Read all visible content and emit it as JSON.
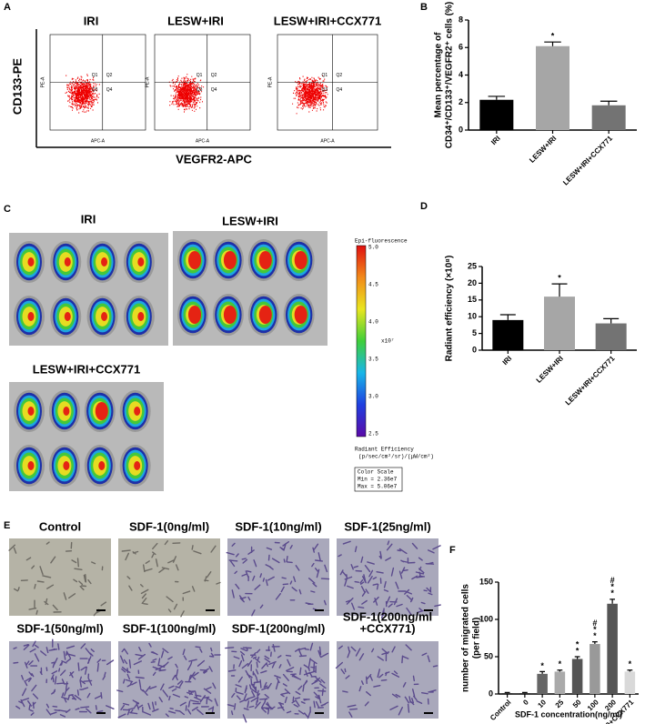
{
  "panel_a": {
    "letter": "A",
    "titles": [
      "IRI",
      "LESW+IRI",
      "LESW+IRI+CCX771"
    ],
    "y_label": "CD133-PE",
    "x_label": "VEGFR2-APC",
    "plot_x_axis": "APC-A",
    "plot_y_axis": "PE-A",
    "quadrants": [
      "Q1",
      "Q2",
      "Q3",
      "Q4"
    ]
  },
  "panel_c": {
    "letter": "C",
    "titles": [
      "IRI",
      "LESW+IRI",
      "LESW+IRI+CCX771"
    ],
    "colorbar": {
      "title": "Epi-fluorescence",
      "ticks": [
        "5.0",
        "4.5",
        "4.0",
        "3.5",
        "3.0",
        "2.5"
      ],
      "scale": "x10⁷",
      "units": [
        "Radiant Efficiency",
        "(p/sec/cm²/sr)/(μW/cm²)"
      ],
      "legend": [
        "Color Scale",
        "Min = 2.36e7",
        "Max = 5.06e7"
      ]
    }
  },
  "panel_e": {
    "letter": "E",
    "titles": [
      [
        "Control"
      ],
      [
        "SDF-1(0ng/ml)"
      ],
      [
        "SDF-1(10ng/ml)"
      ],
      [
        "SDF-1(25ng/ml)"
      ],
      [
        "SDF-1(50ng/ml)"
      ],
      [
        "SDF-1(100ng/ml)"
      ],
      [
        "SDF-1(200ng/ml)"
      ],
      [
        "SDF-1(200ng/ml",
        "+CCX771)"
      ]
    ]
  },
  "chart_data": [
    {
      "type": "bar",
      "panel": "B",
      "ylabel": [
        "Mean percentage of",
        "CD34⁺/CD133⁺/VEGFR2⁺ cells (%)"
      ],
      "categories": [
        "IRI",
        "LESW+IRI",
        "LESW+IRI+CCX771"
      ],
      "values": [
        2.2,
        6.1,
        1.8
      ],
      "errors": [
        0.25,
        0.3,
        0.3
      ],
      "colors": [
        "#000000",
        "#a6a6a6",
        "#737373"
      ],
      "ylim": [
        0,
        8
      ],
      "yticks": [
        0,
        2,
        4,
        6,
        8
      ],
      "annotations": [
        {
          "index": 1,
          "text": "*"
        }
      ]
    },
    {
      "type": "bar",
      "panel": "D",
      "ylabel": [
        "Radiant efficiency (×10⁸)"
      ],
      "categories": [
        "IRI",
        "LESW+IRI",
        "LESW+IRI+CCX771"
      ],
      "values": [
        9,
        16,
        8
      ],
      "errors": [
        1.6,
        3.8,
        1.4
      ],
      "colors": [
        "#000000",
        "#a6a6a6",
        "#737373"
      ],
      "ylim": [
        0,
        25
      ],
      "yticks": [
        0,
        5,
        10,
        15,
        20,
        25
      ],
      "annotations": [
        {
          "index": 1,
          "text": "*"
        }
      ]
    },
    {
      "type": "bar",
      "panel": "F",
      "ylabel": [
        "number of migrated cells",
        "(per field)"
      ],
      "xlabel": "SDF-1 concentration(ng/ml)",
      "categories": [
        "Control",
        "0",
        "10",
        "25",
        "50",
        "100",
        "200",
        "200+CCX771"
      ],
      "values": [
        1,
        1,
        27,
        30,
        47,
        67,
        121,
        30
      ],
      "errors": [
        1,
        1,
        3,
        2,
        3,
        3,
        6,
        2
      ],
      "colors": [
        "#222222",
        "#222222",
        "#666666",
        "#aaaaaa",
        "#555555",
        "#999999",
        "#555555",
        "#d9d9d9"
      ],
      "ylim": [
        0,
        150
      ],
      "yticks": [
        0,
        50,
        100,
        150
      ],
      "annotations": [
        {
          "index": 2,
          "text": "*"
        },
        {
          "index": 3,
          "text": "*"
        },
        {
          "index": 4,
          "text": "*"
        },
        {
          "index": 4,
          "text": "*"
        },
        {
          "index": 5,
          "text": "*"
        },
        {
          "index": 5,
          "text": "*"
        },
        {
          "index": 5,
          "text": "#"
        },
        {
          "index": 6,
          "text": "*"
        },
        {
          "index": 6,
          "text": "*"
        },
        {
          "index": 6,
          "text": "#"
        },
        {
          "index": 7,
          "text": "*"
        }
      ]
    }
  ]
}
